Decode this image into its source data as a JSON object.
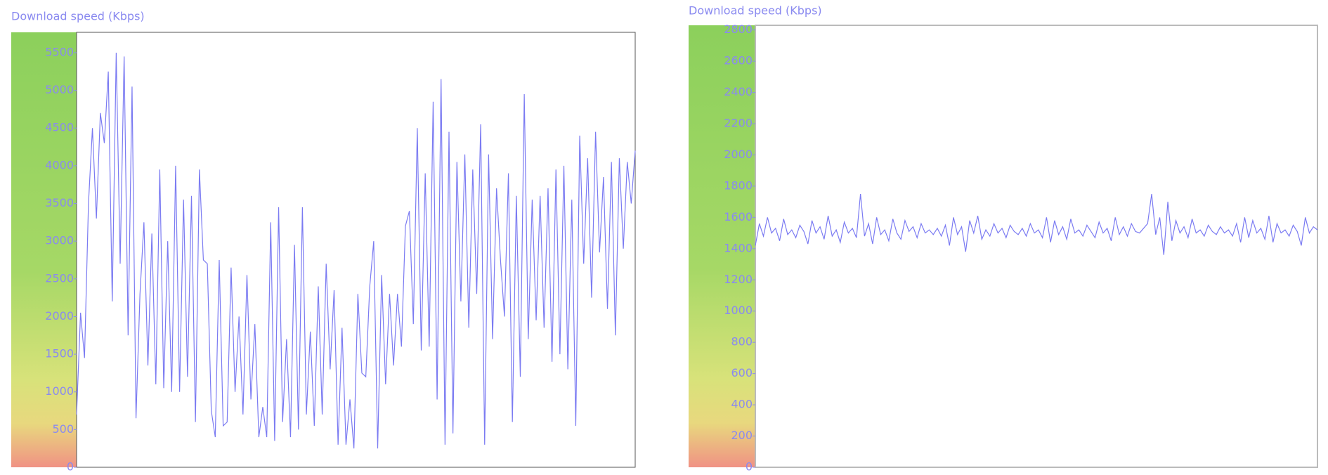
{
  "chart_data": [
    {
      "type": "line",
      "title": "Download speed (Kbps)",
      "color": "#7b7bf2",
      "ylim": [
        0,
        5770
      ],
      "yticks": [
        0,
        500,
        1000,
        1500,
        2000,
        2500,
        3000,
        3500,
        4000,
        4500,
        5000,
        5500
      ],
      "values": [
        700,
        2050,
        1450,
        3500,
        4500,
        3300,
        4700,
        4300,
        5250,
        2200,
        5500,
        2700,
        5450,
        1750,
        5050,
        650,
        2300,
        3250,
        1350,
        3100,
        1100,
        3950,
        1050,
        3000,
        1000,
        4000,
        1000,
        3550,
        1200,
        3600,
        600,
        3950,
        2750,
        2700,
        750,
        400,
        2750,
        550,
        600,
        2650,
        1000,
        2000,
        700,
        2550,
        900,
        1900,
        400,
        800,
        400,
        3250,
        350,
        3450,
        600,
        1700,
        400,
        2950,
        500,
        3450,
        700,
        1800,
        550,
        2400,
        700,
        2700,
        1300,
        2350,
        300,
        1850,
        300,
        900,
        250,
        2300,
        1250,
        1200,
        2400,
        3000,
        250,
        2550,
        1100,
        2300,
        1350,
        2300,
        1600,
        3200,
        3400,
        1900,
        4500,
        1550,
        3900,
        1600,
        4850,
        900,
        5150,
        300,
        4450,
        450,
        4050,
        2200,
        4150,
        1850,
        3950,
        2300,
        4550,
        300,
        4150,
        1700,
        3700,
        2750,
        2000,
        3900,
        600,
        3600,
        1200,
        4950,
        1700,
        3550,
        1950,
        3600,
        1850,
        3700,
        1400,
        3950,
        1500,
        4000,
        1300,
        3550,
        550,
        4400,
        2700,
        4100,
        2250,
        4450,
        2850,
        3850,
        2100,
        4050,
        1750,
        4100,
        2900,
        4050,
        3500,
        4200
      ]
    },
    {
      "type": "line",
      "title": "Download speed (Kbps)",
      "color": "#7b7bf2",
      "ylim": [
        0,
        2830
      ],
      "yticks": [
        0,
        200,
        400,
        600,
        800,
        1000,
        1200,
        1400,
        1600,
        1800,
        2000,
        2200,
        2400,
        2600,
        2800
      ],
      "values": [
        1420,
        1560,
        1480,
        1600,
        1500,
        1530,
        1450,
        1590,
        1490,
        1520,
        1470,
        1550,
        1510,
        1430,
        1580,
        1500,
        1540,
        1460,
        1610,
        1480,
        1520,
        1440,
        1570,
        1500,
        1530,
        1470,
        1750,
        1480,
        1560,
        1430,
        1600,
        1490,
        1520,
        1450,
        1590,
        1500,
        1460,
        1580,
        1510,
        1540,
        1470,
        1560,
        1500,
        1520,
        1490,
        1530,
        1480,
        1550,
        1420,
        1600,
        1490,
        1540,
        1380,
        1580,
        1500,
        1610,
        1460,
        1520,
        1480,
        1560,
        1500,
        1530,
        1470,
        1550,
        1510,
        1490,
        1530,
        1480,
        1560,
        1500,
        1520,
        1470,
        1600,
        1440,
        1580,
        1490,
        1540,
        1460,
        1590,
        1500,
        1520,
        1480,
        1550,
        1510,
        1470,
        1570,
        1500,
        1530,
        1450,
        1600,
        1490,
        1540,
        1480,
        1560,
        1510,
        1500,
        1530,
        1560,
        1750,
        1490,
        1600,
        1360,
        1700,
        1450,
        1580,
        1500,
        1540,
        1470,
        1590,
        1500,
        1520,
        1480,
        1550,
        1510,
        1490,
        1540,
        1500,
        1520,
        1480,
        1560,
        1440,
        1600,
        1470,
        1580,
        1500,
        1530,
        1460,
        1610,
        1440,
        1560,
        1500,
        1520,
        1480,
        1550,
        1510,
        1420,
        1600,
        1500,
        1540,
        1520
      ]
    }
  ]
}
